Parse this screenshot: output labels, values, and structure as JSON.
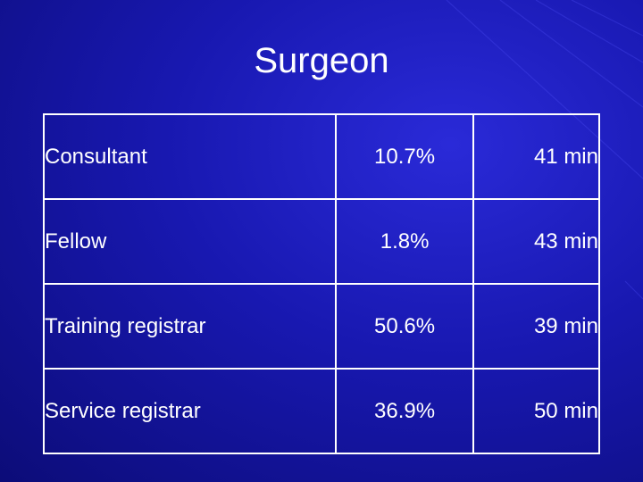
{
  "slide": {
    "title": "Surgeon",
    "table": {
      "rows": [
        {
          "role": "Consultant",
          "percent": "10.7%",
          "time": "41 min"
        },
        {
          "role": "Fellow",
          "percent": "1.8%",
          "time": "43 min"
        },
        {
          "role": "Training registrar",
          "percent": "50.6%",
          "time": "39 min"
        },
        {
          "role": "Service registrar",
          "percent": "36.9%",
          "time": "50 min"
        }
      ]
    }
  }
}
